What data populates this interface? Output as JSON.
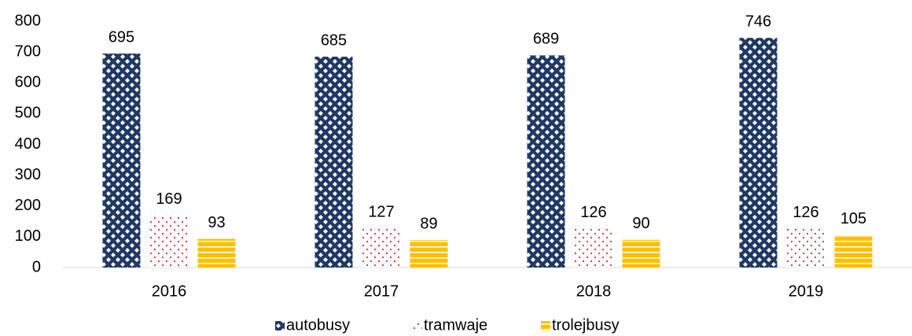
{
  "chart_data": {
    "type": "bar",
    "categories": [
      "2016",
      "2017",
      "2018",
      "2019"
    ],
    "series": [
      {
        "name": "autobusy",
        "color": "#203864",
        "pattern": "diamonds",
        "values": [
          695,
          685,
          689,
          746
        ]
      },
      {
        "name": "tramwaje",
        "color": "#e00000",
        "pattern": "dots",
        "values": [
          169,
          127,
          126,
          126
        ]
      },
      {
        "name": "trolejbusy",
        "color": "#ffc000",
        "pattern": "stripes",
        "values": [
          93,
          89,
          90,
          105
        ]
      }
    ],
    "ylim": [
      0,
      800
    ],
    "yticks": [
      0,
      100,
      200,
      300,
      400,
      500,
      600,
      700,
      800
    ],
    "grid": false,
    "legend": "bottom",
    "data_labels": true
  }
}
